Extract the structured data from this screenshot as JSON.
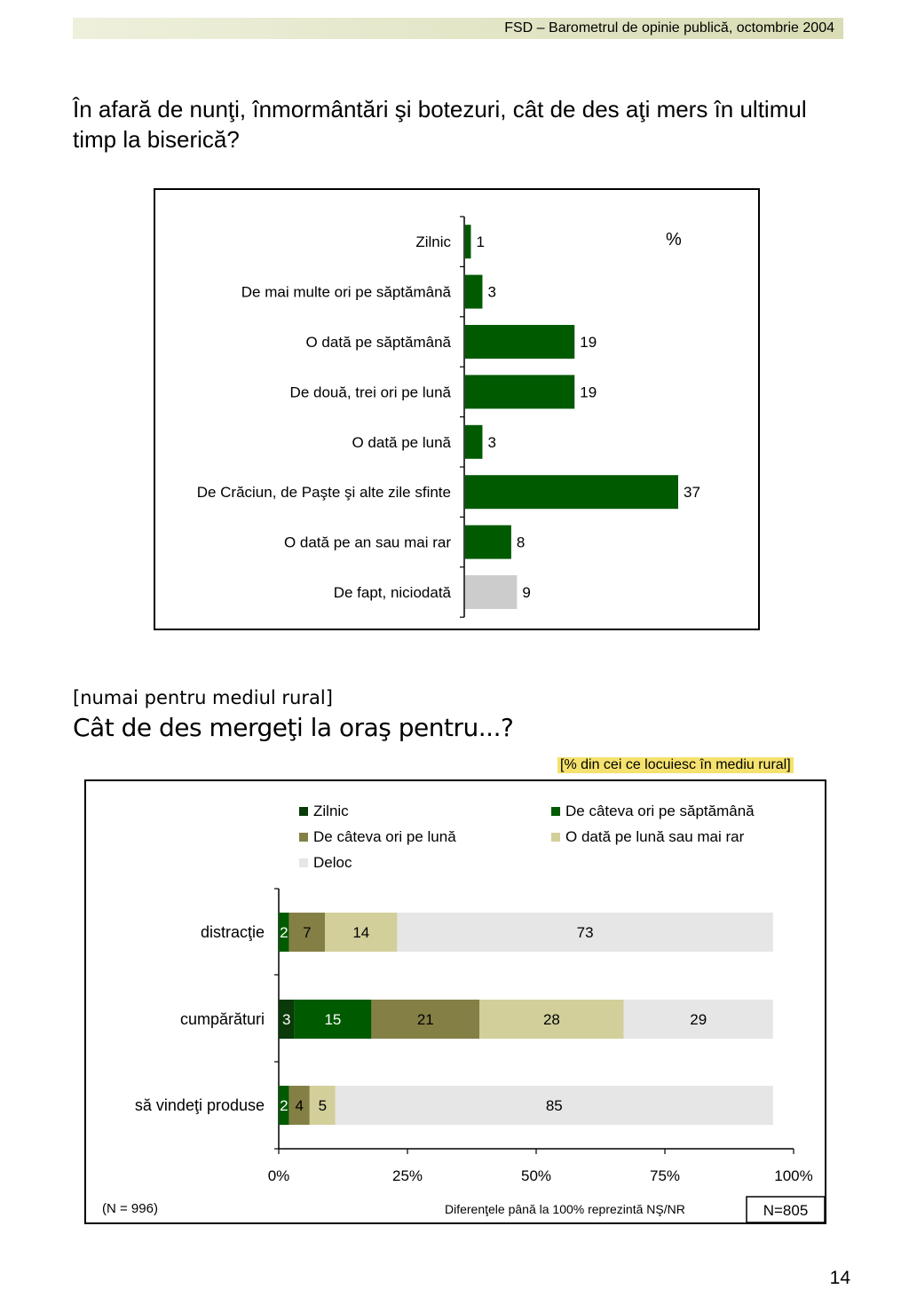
{
  "header": {
    "title": "FSD  –  Barometrul de opinie publică, octombrie 2004"
  },
  "question1": "În afară de nunţi, înmormântări şi botezuri, cât de des aţi mers în ultimul timp la biserică?",
  "question2_context": "[numai pentru mediul rural]",
  "question2": "Cât de des mergeţi la oraş pentru...?",
  "rural_note": "[% din cei ce locuiesc în mediu rural]",
  "page_number": "14",
  "colors": {
    "dark_green": "#005a00",
    "very_dark_green": "#0a3a0a",
    "olive": "#848045",
    "beige": "#d2cf9b",
    "light_gray": "#e6e6e6",
    "gray_bar": "#cccccc"
  },
  "chart_data": [
    {
      "type": "bar",
      "orientation": "horizontal",
      "unit_label": "%",
      "categories": [
        "Zilnic",
        "De mai multe ori pe săptămână",
        "O dată pe săptămână",
        "De două, trei ori pe lună",
        "O dată pe lună",
        "De Crăciun, de Paşte şi alte zile sfinte",
        "O dată pe an sau mai rar",
        "De fapt, niciodată"
      ],
      "values": [
        1,
        3,
        19,
        19,
        3,
        37,
        8,
        9
      ],
      "bar_colors": [
        "#005a00",
        "#005a00",
        "#005a00",
        "#005a00",
        "#005a00",
        "#005a00",
        "#005a00",
        "#cccccc"
      ],
      "xlim": [
        0,
        50
      ]
    },
    {
      "type": "bar",
      "orientation": "horizontal",
      "stacked": true,
      "categories": [
        "distracţie",
        "cumpărături",
        "să vindeţi produse"
      ],
      "series": [
        {
          "name": "Zilnic",
          "color": "#0a3a0a",
          "values": [
            0,
            3,
            0
          ]
        },
        {
          "name": "De câteva ori pe săptămână",
          "color": "#005a00",
          "values": [
            2,
            15,
            2
          ]
        },
        {
          "name": "De câteva ori pe lună",
          "color": "#848045",
          "values": [
            7,
            21,
            4
          ]
        },
        {
          "name": "O dată pe lună sau mai rar",
          "color": "#d2cf9b",
          "values": [
            14,
            28,
            5
          ]
        },
        {
          "name": "Deloc",
          "color": "#e6e6e6",
          "values": [
            73,
            29,
            85
          ]
        }
      ],
      "xlim": [
        0,
        100
      ],
      "x_ticks": [
        "0%",
        "25%",
        "50%",
        "75%",
        "100%"
      ],
      "footnote_left": "(N = 996)",
      "footnote_center": "Diferenţele până la 100% reprezintă NŞ/NR",
      "footnote_right": "N=805"
    }
  ]
}
